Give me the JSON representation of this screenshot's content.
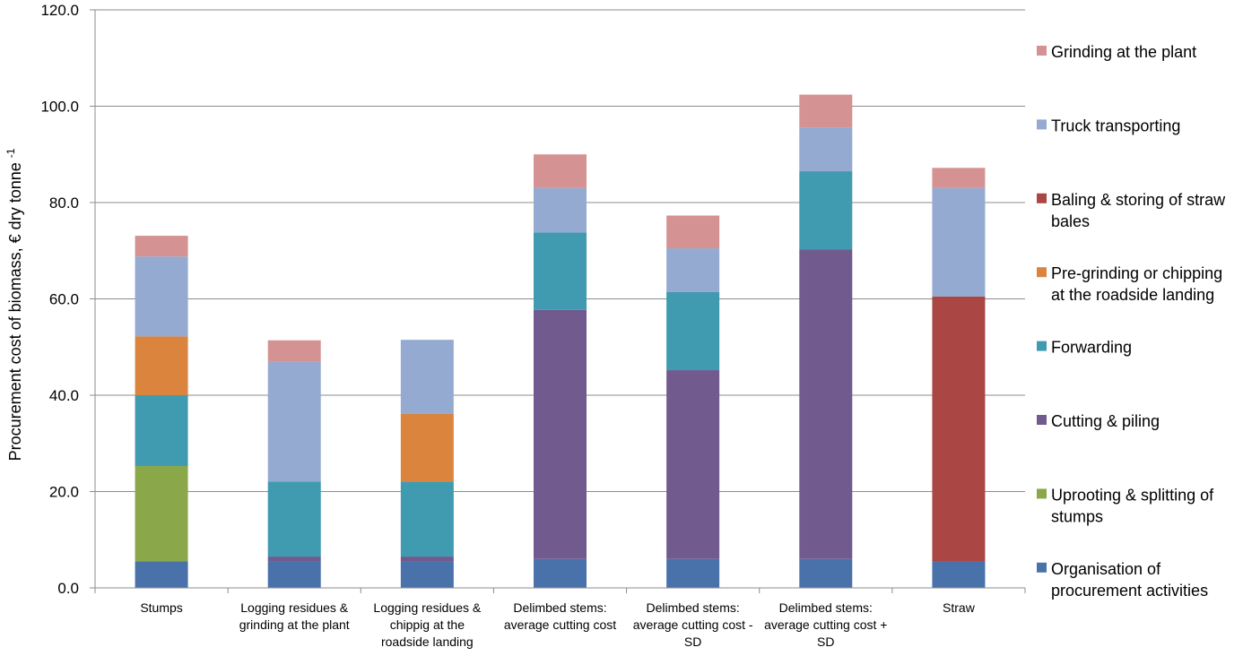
{
  "chart_data": {
    "type": "bar",
    "stacked": true,
    "title": "",
    "xlabel": "",
    "ylabel": "Procurement cost of biomass, € dry tonne",
    "ylabel_superscript": "-1",
    "ylim": [
      0,
      120
    ],
    "yticks": [
      "0.0",
      "20.0",
      "40.0",
      "60.0",
      "80.0",
      "100.0",
      "120.0"
    ],
    "grid": true,
    "legend_position": "right",
    "categories": [
      [
        "Stumps"
      ],
      [
        "Logging residues &",
        "grinding at the plant"
      ],
      [
        "Logging residues &",
        "chippig at the",
        "roadside landing"
      ],
      [
        "Delimbed stems:",
        "average cutting cost"
      ],
      [
        "Delimbed stems:",
        "average cutting cost -",
        "SD"
      ],
      [
        "Delimbed stems:",
        "average cutting cost +",
        "SD"
      ],
      [
        "Straw"
      ]
    ],
    "series": [
      {
        "name": [
          "Organisation of",
          "procurement activities"
        ],
        "color": "#4A72AA",
        "values": [
          5.5,
          5.5,
          5.5,
          6.0,
          6.0,
          6.0,
          5.5
        ]
      },
      {
        "name": [
          "Uprooting & splitting of",
          "stumps"
        ],
        "color": "#8AA84A",
        "values": [
          19.8,
          0,
          0,
          0,
          0,
          0,
          0
        ]
      },
      {
        "name": [
          "Cutting & piling"
        ],
        "color": "#705A8E",
        "values": [
          0,
          1.0,
          1.0,
          51.7,
          39.2,
          64.3,
          0
        ]
      },
      {
        "name": [
          "Forwarding"
        ],
        "color": "#409AB0",
        "values": [
          14.7,
          15.6,
          15.6,
          16.1,
          16.2,
          16.2,
          0
        ]
      },
      {
        "name": [
          "Pre-grinding or chipping",
          "at the roadside landing"
        ],
        "color": "#DB843D",
        "values": [
          12.2,
          0,
          14.0,
          0,
          0,
          0,
          0
        ]
      },
      {
        "name": [
          "Baling & storing of straw",
          "bales"
        ],
        "color": "#AA4643",
        "values": [
          0,
          0,
          0,
          0,
          0,
          0,
          55.0
        ]
      },
      {
        "name": [
          "Truck transporting"
        ],
        "color": "#94AAD0",
        "values": [
          16.6,
          24.8,
          15.4,
          9.2,
          9.1,
          9.1,
          22.5
        ]
      },
      {
        "name": [
          "Grinding at the plant"
        ],
        "color": "#D49392",
        "values": [
          4.3,
          4.5,
          0,
          7.0,
          6.8,
          6.8,
          4.2
        ]
      }
    ]
  }
}
